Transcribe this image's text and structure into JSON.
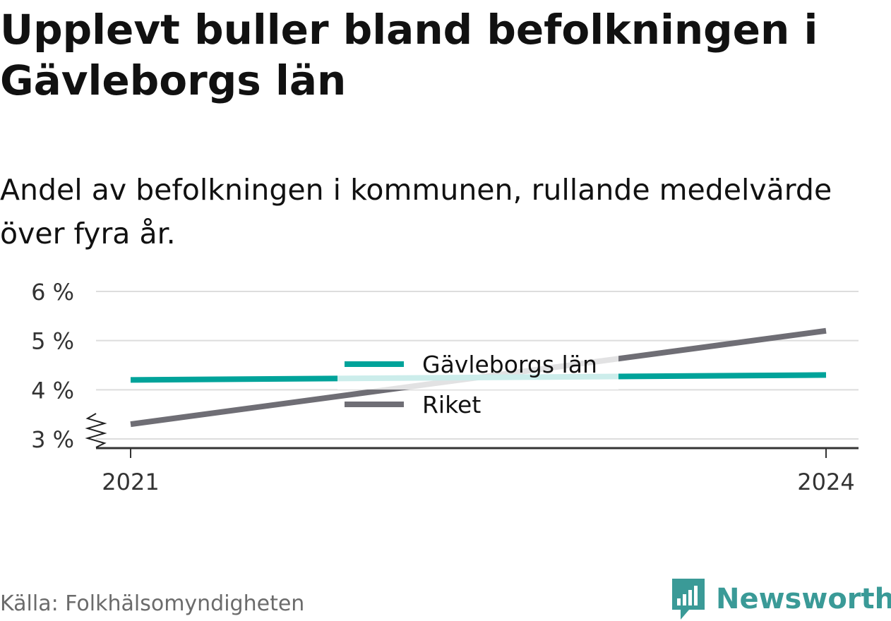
{
  "title": "Upplevt buller bland befolkningen i Gävleborgs län",
  "subtitle": "Andel av befolkningen i kommunen, rullande medelvärde över fyra år.",
  "source": "Källa: Folkhälsomyndigheten",
  "brand": {
    "name": "Newsworthy",
    "icon": "newsworthy-logo-icon",
    "color": "#3a9a97"
  },
  "chart_data": {
    "type": "line",
    "x": [
      2021,
      2024
    ],
    "x_tick_labels": [
      "2021",
      "2024"
    ],
    "y_ticks": [
      3,
      4,
      5,
      6
    ],
    "y_tick_labels": [
      "3 %",
      "4 %",
      "5 %",
      "6 %"
    ],
    "ylim": [
      3,
      6
    ],
    "y_axis_break": true,
    "grid": true,
    "legend_position": "center",
    "series": [
      {
        "name": "Gävleborgs län",
        "color": "#00a39a",
        "values": [
          4.2,
          4.3
        ]
      },
      {
        "name": "Riket",
        "color": "#6f6e75",
        "values": [
          3.3,
          5.2
        ]
      }
    ]
  }
}
